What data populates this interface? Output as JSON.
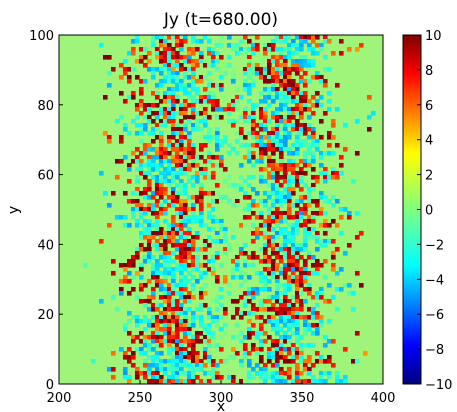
{
  "chart_data": {
    "type": "heatmap",
    "title": "Jy (t=680.00)",
    "xlabel": "x",
    "ylabel": "y",
    "xlim": [
      200,
      400
    ],
    "ylim": [
      0,
      100
    ],
    "xticks": [
      "200",
      "250",
      "300",
      "350",
      "400"
    ],
    "yticks": [
      "0",
      "20",
      "40",
      "60",
      "80",
      "100"
    ],
    "colorbar": {
      "range": [
        -10,
        10
      ],
      "ticks": [
        "10",
        "8",
        "6",
        "4",
        "2",
        "0",
        "−2",
        "−4",
        "−6",
        "−8",
        "−10"
      ],
      "colormap": "jet"
    },
    "field_description_values": {
      "background_value": 1.5,
      "hot_bands_x": [
        270,
        340
      ],
      "hot_band_value": 9
    }
  },
  "colors": {
    "jet": [
      "#00007f",
      "#0000ff",
      "#007fff",
      "#00ffff",
      "#7fff7f",
      "#ffff00",
      "#ff7f00",
      "#ff0000",
      "#7f0000"
    ]
  }
}
